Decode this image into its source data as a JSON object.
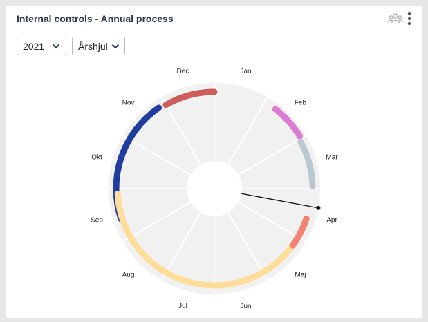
{
  "widget": {
    "title": "Internal controls - Annual process",
    "users_icon": "users-icon",
    "more_icon": "more-vertical-icon"
  },
  "filters": {
    "year": {
      "selected": "2021",
      "icon": "chevron-down-icon"
    },
    "view": {
      "selected": "Årshjul",
      "icon": "chevron-down-icon"
    }
  },
  "months": [
    "Jan",
    "Feb",
    "Mar",
    "Apr",
    "Maj",
    "Jun",
    "Jul",
    "Aug",
    "Sep",
    "Okt",
    "Nov",
    "Dec"
  ],
  "activities": [
    {
      "color": "#cd5c5c",
      "start_month": 11.0,
      "end_month": 12.0
    },
    {
      "color": "#1f3c9e",
      "start_month": 8.4,
      "end_month": 10.85
    },
    {
      "color": "#da7ad0",
      "start_month": 1.25,
      "end_month": 1.95
    },
    {
      "color": "#bcc8d1",
      "start_month": 2.05,
      "end_month": 2.95
    },
    {
      "color": "#fddd99",
      "start_month": 3.6,
      "end_month": 8.9
    },
    {
      "color": "#f38275",
      "start_month": 3.6,
      "end_month": 4.2
    }
  ],
  "today_marker": {
    "label": "Apr",
    "month_position": 3.35
  }
}
